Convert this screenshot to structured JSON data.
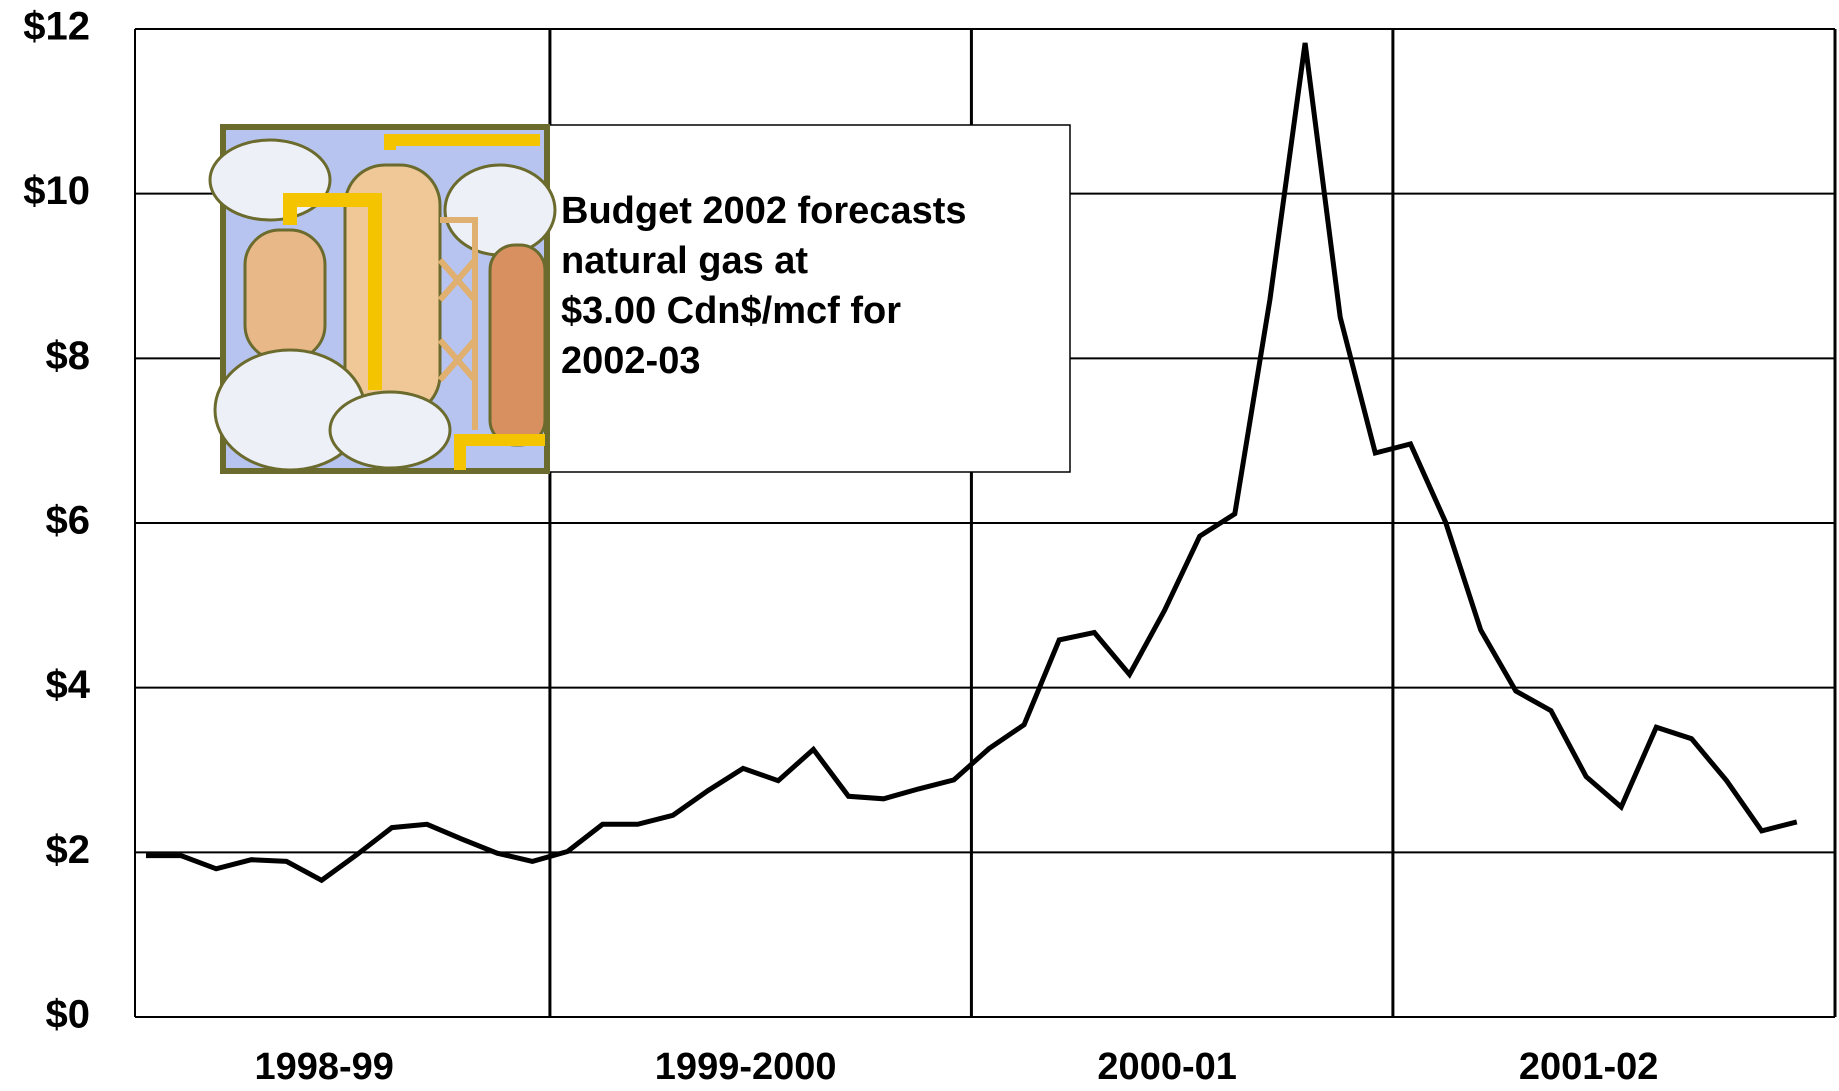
{
  "chart_data": {
    "type": "line",
    "groups": [
      "1998-99",
      "1999-2000",
      "2000-01",
      "2001-02"
    ],
    "series": [
      {
        "color": "#000000",
        "values": [
          1.96,
          1.96,
          1.8,
          1.91,
          1.89,
          1.66,
          1.97,
          2.3,
          2.34,
          2.16,
          1.99,
          1.89,
          2.01,
          2.34,
          2.34,
          2.45,
          2.75,
          3.02,
          2.87,
          3.25,
          2.68,
          2.65,
          2.77,
          2.88,
          3.26,
          3.55,
          4.58,
          4.67,
          4.16,
          4.94,
          5.84,
          6.11,
          8.72,
          11.83,
          8.5,
          6.85,
          6.96,
          6.01,
          4.7,
          3.96,
          3.72,
          2.92,
          2.55,
          3.52,
          3.38,
          2.87,
          2.26,
          2.37
        ]
      }
    ],
    "ylim": [
      0,
      12
    ],
    "yticks": [
      {
        "value": 0,
        "label": "$0"
      },
      {
        "value": 2,
        "label": "$2"
      },
      {
        "value": 4,
        "label": "$4"
      },
      {
        "value": 6,
        "label": "$6"
      },
      {
        "value": 8,
        "label": "$8"
      },
      {
        "value": 10,
        "label": "$10"
      },
      {
        "value": 12,
        "label": "$12"
      }
    ],
    "grid": true,
    "annotation": [
      "Budget 2002 forecasts",
      "natural gas at",
      "$3.00 Cdn$/mcf for",
      "2002-03"
    ]
  }
}
